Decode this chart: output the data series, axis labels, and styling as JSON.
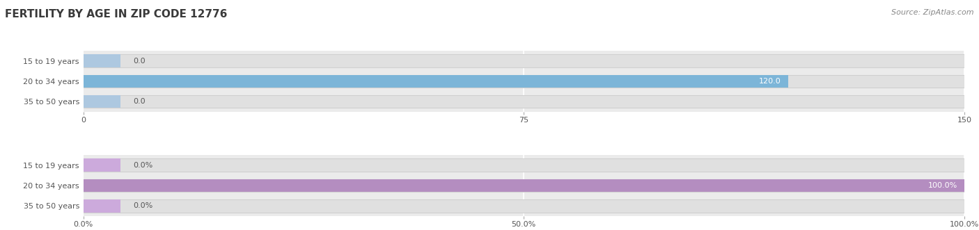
{
  "title": "FERTILITY BY AGE IN ZIP CODE 12776",
  "source": "Source: ZipAtlas.com",
  "top_chart": {
    "categories": [
      "15 to 19 years",
      "20 to 34 years",
      "35 to 50 years"
    ],
    "values": [
      0.0,
      120.0,
      0.0
    ],
    "xlim": [
      0,
      150
    ],
    "xticks": [
      0.0,
      75.0,
      150.0
    ],
    "bar_color": "#7cb5d8",
    "bar_color_light": "#adc8e0",
    "value_labels": [
      "0.0",
      "120.0",
      "0.0"
    ]
  },
  "bottom_chart": {
    "categories": [
      "15 to 19 years",
      "20 to 34 years",
      "35 to 50 years"
    ],
    "values": [
      0.0,
      100.0,
      0.0
    ],
    "xlim": [
      0,
      100
    ],
    "xticks": [
      0.0,
      50.0,
      100.0
    ],
    "xtick_labels": [
      "0.0%",
      "50.0%",
      "100.0%"
    ],
    "bar_color": "#b48dc0",
    "bar_color_light": "#ccaadc",
    "value_labels": [
      "0.0%",
      "100.0%",
      "0.0%"
    ]
  },
  "fig_bg_color": "#ffffff",
  "chart_bg_color": "#ebebeb",
  "bar_bg_color": "#e0e0e0",
  "bar_height": 0.62,
  "label_color": "#555555",
  "title_color": "#3a3a3a",
  "source_color": "#888888",
  "value_label_color_inside": "#ffffff",
  "value_label_color_outside": "#555555",
  "title_fontsize": 11,
  "source_fontsize": 8,
  "category_fontsize": 8,
  "tick_fontsize": 8
}
